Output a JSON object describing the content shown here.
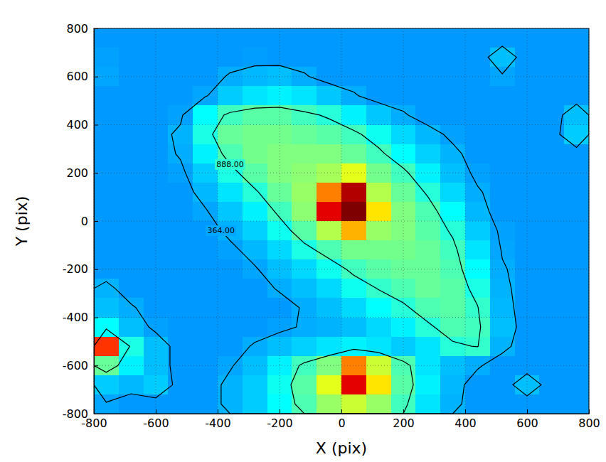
{
  "chart_data": {
    "type": "heatmap",
    "x_label": "X (pix)",
    "y_label": "Y (pix)",
    "xlim": [
      -800,
      800
    ],
    "ylim": [
      -800,
      800
    ],
    "xticks": [
      -800,
      -600,
      -400,
      -200,
      0,
      200,
      400,
      600,
      800
    ],
    "yticks": [
      -800,
      -600,
      -400,
      -200,
      0,
      200,
      400,
      600,
      800
    ],
    "grid": true,
    "x": [
      -760,
      -680,
      -600,
      -520,
      -440,
      -360,
      -280,
      -200,
      -120,
      -40,
      40,
      120,
      200,
      280,
      360,
      440,
      520,
      600,
      680,
      760
    ],
    "y": [
      760,
      680,
      600,
      520,
      440,
      360,
      280,
      200,
      120,
      40,
      -40,
      -120,
      -200,
      -280,
      -360,
      -440,
      -520,
      -600,
      -680,
      -760
    ],
    "z": [
      [
        300,
        300,
        300,
        300,
        300,
        300,
        300,
        300,
        300,
        300,
        300,
        300,
        300,
        300,
        300,
        300,
        300,
        300,
        300,
        300
      ],
      [
        330,
        300,
        300,
        300,
        300,
        300,
        320,
        300,
        300,
        300,
        300,
        300,
        300,
        300,
        300,
        300,
        450,
        300,
        300,
        300
      ],
      [
        350,
        300,
        300,
        300,
        300,
        380,
        420,
        450,
        380,
        300,
        300,
        300,
        300,
        300,
        300,
        300,
        350,
        300,
        300,
        300
      ],
      [
        300,
        300,
        300,
        300,
        350,
        500,
        600,
        650,
        600,
        480,
        380,
        300,
        300,
        300,
        300,
        300,
        300,
        300,
        300,
        300
      ],
      [
        300,
        300,
        300,
        330,
        700,
        950,
        1050,
        1050,
        950,
        850,
        650,
        480,
        380,
        300,
        300,
        300,
        300,
        300,
        300,
        450
      ],
      [
        300,
        300,
        300,
        400,
        800,
        1100,
        1150,
        1150,
        1100,
        1050,
        950,
        750,
        550,
        420,
        330,
        300,
        300,
        300,
        300,
        500
      ],
      [
        300,
        300,
        300,
        380,
        650,
        1000,
        1150,
        1200,
        1200,
        1200,
        1100,
        950,
        700,
        520,
        400,
        300,
        300,
        300,
        300,
        300
      ],
      [
        300,
        300,
        300,
        330,
        500,
        800,
        1050,
        1200,
        1250,
        1350,
        1600,
        1150,
        950,
        650,
        450,
        330,
        300,
        300,
        300,
        300
      ],
      [
        300,
        300,
        300,
        300,
        420,
        600,
        850,
        1100,
        1300,
        2200,
        3000,
        1400,
        1100,
        850,
        550,
        380,
        300,
        300,
        300,
        300
      ],
      [
        300,
        300,
        300,
        300,
        350,
        480,
        650,
        950,
        1250,
        2800,
        3200,
        1800,
        1200,
        1000,
        700,
        420,
        300,
        300,
        300,
        300
      ],
      [
        300,
        300,
        300,
        300,
        300,
        400,
        520,
        750,
        1050,
        1400,
        2000,
        1300,
        1200,
        1050,
        850,
        500,
        330,
        300,
        300,
        300
      ],
      [
        300,
        300,
        300,
        300,
        300,
        330,
        420,
        550,
        800,
        1000,
        1150,
        1150,
        1150,
        1100,
        950,
        600,
        350,
        300,
        300,
        300
      ],
      [
        300,
        300,
        300,
        300,
        300,
        300,
        350,
        450,
        550,
        750,
        950,
        1050,
        1100,
        1100,
        1000,
        700,
        380,
        300,
        300,
        300
      ],
      [
        400,
        300,
        300,
        300,
        300,
        300,
        300,
        380,
        450,
        550,
        750,
        900,
        1000,
        1100,
        1050,
        800,
        400,
        300,
        300,
        300
      ],
      [
        450,
        380,
        300,
        300,
        300,
        300,
        300,
        300,
        380,
        450,
        550,
        700,
        850,
        1000,
        1050,
        900,
        420,
        300,
        300,
        300
      ],
      [
        700,
        450,
        330,
        300,
        300,
        300,
        300,
        330,
        380,
        400,
        450,
        550,
        650,
        850,
        1000,
        950,
        450,
        300,
        300,
        300
      ],
      [
        2500,
        800,
        450,
        300,
        300,
        300,
        380,
        450,
        520,
        600,
        650,
        600,
        500,
        600,
        850,
        900,
        400,
        300,
        300,
        300
      ],
      [
        1100,
        650,
        450,
        300,
        300,
        350,
        450,
        650,
        950,
        1200,
        2200,
        1500,
        1000,
        600,
        450,
        380,
        300,
        300,
        300,
        300
      ],
      [
        500,
        420,
        500,
        300,
        300,
        400,
        500,
        750,
        1050,
        1600,
        2800,
        1800,
        1050,
        650,
        420,
        300,
        300,
        450,
        300,
        300
      ],
      [
        350,
        300,
        300,
        300,
        300,
        400,
        500,
        700,
        1000,
        1300,
        1500,
        1300,
        950,
        600,
        400,
        300,
        300,
        300,
        300,
        300
      ]
    ],
    "color_range": [
      -800,
      3200
    ],
    "contour_levels": [
      {
        "value": 364,
        "label": "364.00"
      },
      {
        "value": 888,
        "label": "888.00"
      }
    ]
  }
}
